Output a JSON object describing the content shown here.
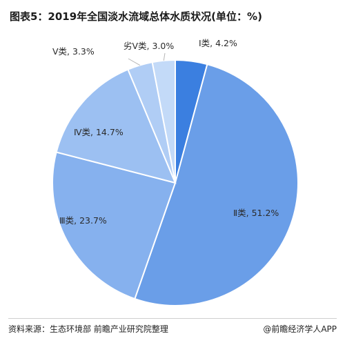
{
  "title": "图表5：2019年全国淡水流域总体水质状况(单位：%)",
  "chart_data": {
    "type": "pie",
    "title": "图表5：2019年全国淡水流域总体水质状况(单位：%)",
    "categories": [
      "Ⅰ类",
      "Ⅱ类",
      "Ⅲ类",
      "Ⅳ类",
      "Ⅴ类",
      "劣Ⅴ类"
    ],
    "values": [
      4.2,
      51.2,
      23.7,
      14.7,
      3.3,
      3.0
    ],
    "labels": [
      "Ⅰ类, 4.2%",
      "Ⅱ类, 51.2%",
      "Ⅲ类, 23.7%",
      "Ⅳ类, 14.7%",
      "Ⅴ类, 3.3%",
      "劣Ⅴ类, 3.0%"
    ],
    "colors": [
      "#3b7fe0",
      "#6a9ee8",
      "#86b1ee",
      "#9cc0f2",
      "#b0cdf5",
      "#c3daf8"
    ],
    "start": "12 o'clock",
    "direction": "clockwise"
  },
  "footer": {
    "source": "资料来源：生态环境部 前瞻产业研究院整理",
    "brand": "@前瞻经济学人APP"
  }
}
